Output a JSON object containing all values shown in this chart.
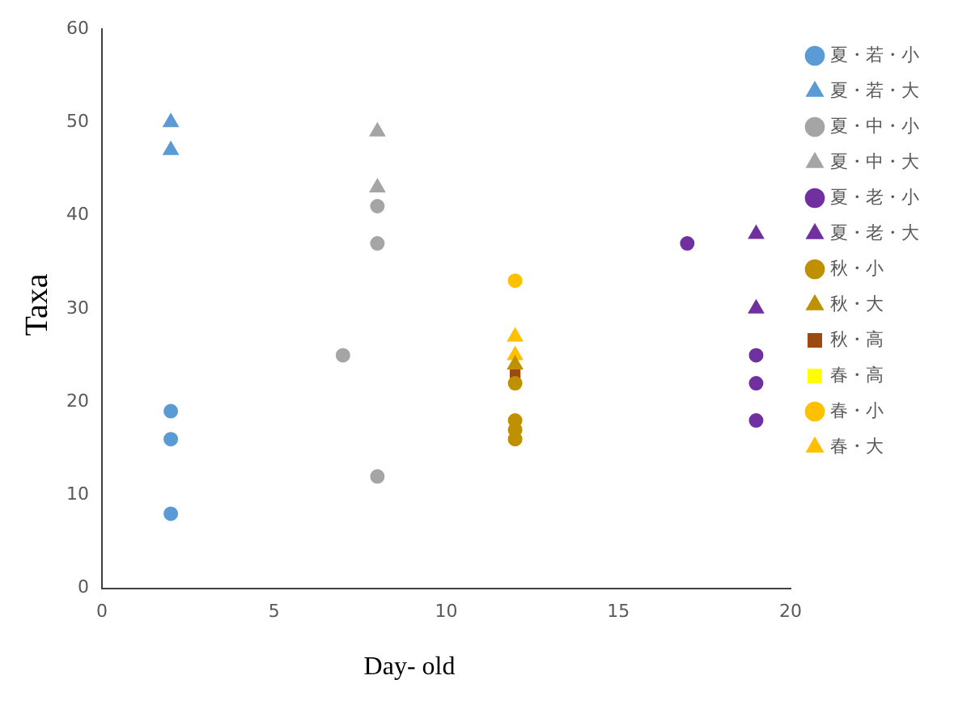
{
  "chart_data": {
    "type": "scatter",
    "xlabel": "Day- old",
    "ylabel": "Taxa",
    "xlim": [
      0,
      20
    ],
    "xticks": [
      0,
      5,
      10,
      15,
      20
    ],
    "ylim": [
      0,
      60
    ],
    "yticks": [
      0,
      10,
      20,
      30,
      40,
      50,
      60
    ],
    "grid": false,
    "legend": "right",
    "series": [
      {
        "name": "夏・若・小",
        "color": "#5b9bd5",
        "marker": "circle",
        "x": [
          2,
          2,
          2
        ],
        "values": [
          19,
          16,
          8
        ]
      },
      {
        "name": "夏・若・大",
        "color": "#5b9bd5",
        "marker": "triangle",
        "x": [
          2,
          2
        ],
        "values": [
          50,
          47
        ]
      },
      {
        "name": "夏・中・小",
        "color": "#a5a5a5",
        "marker": "circle",
        "x": [
          8,
          8,
          7,
          8
        ],
        "values": [
          41,
          37,
          25,
          12
        ]
      },
      {
        "name": "夏・中・大",
        "color": "#a5a5a5",
        "marker": "triangle",
        "x": [
          8,
          8
        ],
        "values": [
          49,
          43
        ]
      },
      {
        "name": "夏・老・小",
        "color": "#7030a0",
        "marker": "circle",
        "x": [
          17,
          19,
          19,
          19
        ],
        "values": [
          37,
          25,
          22,
          18
        ]
      },
      {
        "name": "夏・老・大",
        "color": "#7030a0",
        "marker": "triangle",
        "x": [
          19,
          19
        ],
        "values": [
          38,
          30
        ]
      },
      {
        "name": "秋・小",
        "color": "#bf9000",
        "marker": "circle",
        "x": [
          12,
          12,
          12,
          12
        ],
        "values": [
          22,
          18,
          17,
          16
        ]
      },
      {
        "name": "秋・大",
        "color": "#bf9000",
        "marker": "triangle",
        "x": [
          12
        ],
        "values": [
          24
        ]
      },
      {
        "name": "秋・高",
        "color": "#9c4a0f",
        "marker": "square",
        "x": [
          12
        ],
        "values": [
          23
        ]
      },
      {
        "name": "春・高",
        "color": "#ffff00",
        "marker": "square"
      },
      {
        "name": "春・小",
        "color": "#ffc000",
        "marker": "circle",
        "x": [
          12
        ],
        "values": [
          33
        ]
      },
      {
        "name": "春・大",
        "color": "#ffc000",
        "marker": "triangle",
        "x": [
          12,
          12
        ],
        "values": [
          27,
          25
        ]
      }
    ]
  }
}
